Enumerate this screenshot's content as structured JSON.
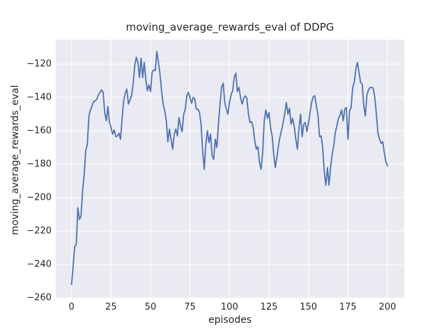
{
  "title": "moving_average_rewards_eval of DDPG",
  "chart_data": {
    "type": "line",
    "title": "moving_average_rewards_eval of DDPG",
    "xlabel": "episodes",
    "ylabel": "moving_average_rewards_eval",
    "legend": "none",
    "grid": true,
    "style": "seaborn-darkgrid",
    "background_color": "#eaeaf2",
    "gridline_color": "#ffffff",
    "line_color": "#4c72b0",
    "text_color": "#262626",
    "x_ticks": [
      0,
      25,
      50,
      75,
      100,
      125,
      150,
      175,
      200
    ],
    "y_ticks": [
      -120,
      -140,
      -160,
      -180,
      -200,
      -220,
      -240,
      -260
    ],
    "xlim": [
      -10,
      210.6
    ],
    "ylim": [
      -260.4,
      -105.4
    ],
    "x_is_index": true,
    "episodes_range": [
      0,
      200
    ],
    "series": [
      {
        "name": "moving_average_rewards_eval",
        "values": [
          -252,
          -241,
          -229.5,
          -228,
          -206,
          -213,
          -211,
          -196,
          -186,
          -172,
          -168,
          -151,
          -147.5,
          -145,
          -142.5,
          -142,
          -141,
          -138.5,
          -137,
          -135.5,
          -137,
          -149,
          -154,
          -145.5,
          -155,
          -158,
          -162,
          -159.5,
          -163.5,
          -163,
          -161.5,
          -165,
          -153,
          -142,
          -137.5,
          -135,
          -144,
          -141.5,
          -139,
          -132,
          -121,
          -116,
          -119,
          -128,
          -116.5,
          -128,
          -119,
          -129,
          -136,
          -132.5,
          -136.5,
          -125,
          -123.5,
          -124,
          -112.5,
          -119,
          -126,
          -136,
          -144,
          -148,
          -154,
          -166.5,
          -159,
          -165,
          -171,
          -162,
          -159,
          -163,
          -152,
          -157,
          -160.5,
          -150,
          -147,
          -139,
          -137,
          -140,
          -143.5,
          -140,
          -141,
          -147,
          -147,
          -149,
          -156,
          -172,
          -183,
          -168,
          -160,
          -167,
          -162,
          -175,
          -177,
          -165,
          -170,
          -156,
          -144,
          -134,
          -131.5,
          -143,
          -147,
          -150,
          -143,
          -138.5,
          -136,
          -128,
          -125.5,
          -136.5,
          -134,
          -140,
          -144,
          -140.5,
          -139,
          -140.5,
          -150,
          -155,
          -154.5,
          -158,
          -166,
          -171,
          -169.5,
          -179,
          -183,
          -173,
          -154,
          -147.5,
          -152.5,
          -149,
          -158,
          -163,
          -174,
          -182,
          -176,
          -169,
          -163.5,
          -159.5,
          -155,
          -149.5,
          -143,
          -150,
          -146.5,
          -156,
          -152.5,
          -157.5,
          -165,
          -171,
          -158,
          -150,
          -163.5,
          -156,
          -155,
          -160.5,
          -155.5,
          -149,
          -143,
          -139.5,
          -139,
          -145,
          -150.5,
          -163.5,
          -163,
          -170,
          -184.5,
          -192.5,
          -182,
          -192.5,
          -182,
          -174,
          -169,
          -161,
          -157,
          -152.5,
          -150.5,
          -147.5,
          -154,
          -147,
          -146,
          -165,
          -148,
          -146,
          -134,
          -131,
          -123,
          -119,
          -125,
          -131,
          -132,
          -145,
          -151,
          -138.5,
          -135.5,
          -134,
          -134,
          -134.5,
          -140,
          -150,
          -161.5,
          -165,
          -167.5,
          -166.5,
          -173,
          -178.5,
          -181
        ]
      }
    ]
  }
}
